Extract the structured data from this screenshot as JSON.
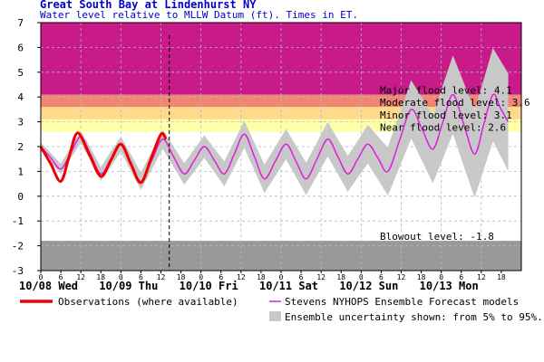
{
  "chart_data": {
    "type": "line",
    "title": "Great South Bay at Lindenhurst NY",
    "subtitle": "Water level relative to MLLW Datum (ft). Times in ET.",
    "xlim": [
      0,
      144
    ],
    "ylim": [
      -3,
      7
    ],
    "yticks": [
      -3,
      -2,
      -1,
      0,
      1,
      2,
      3,
      4,
      5,
      6,
      7
    ],
    "xticks": [
      0,
      6,
      12,
      18,
      {
        "value": 24,
        "label": "0"
      },
      {
        "value": 30,
        "label": "6"
      },
      {
        "value": 36,
        "label": "12"
      },
      {
        "value": 42,
        "label": "18"
      },
      {
        "value": 48,
        "label": "0"
      },
      {
        "value": 54,
        "label": "6"
      },
      {
        "value": 60,
        "label": "12"
      },
      {
        "value": 66,
        "label": "18"
      },
      {
        "value": 72,
        "label": "0"
      },
      {
        "value": 78,
        "label": "6"
      },
      {
        "value": 84,
        "label": "12"
      },
      {
        "value": 90,
        "label": "18"
      },
      {
        "value": 96,
        "label": "0"
      },
      {
        "value": 102,
        "label": "6"
      },
      {
        "value": 108,
        "label": "12"
      },
      {
        "value": 114,
        "label": "18"
      },
      {
        "value": 120,
        "label": "0"
      },
      {
        "value": 126,
        "label": "6"
      },
      {
        "value": 132,
        "label": "12"
      },
      {
        "value": 138,
        "label": "18"
      }
    ],
    "day_labels": [
      {
        "value": 0,
        "label": "10/08 Wed"
      },
      {
        "value": 24,
        "label": "10/09 Thu"
      },
      {
        "value": 48,
        "label": "10/10 Fri"
      },
      {
        "value": 72,
        "label": "10/11 Sat"
      },
      {
        "value": 96,
        "label": "10/12 Sun"
      },
      {
        "value": 120,
        "label": "10/13 Mon"
      }
    ],
    "grid": true,
    "forecast_time": 38.5,
    "flood_bands": [
      {
        "label": "Near flood level: 2.6",
        "level": 2.6,
        "color": "#ffffa8"
      },
      {
        "label": "Minor flood level: 3.1",
        "level": 3.1,
        "color": "#ffd98c"
      },
      {
        "label": "Moderate flood level: 3.6",
        "level": 3.6,
        "color": "#f08672"
      },
      {
        "label": "Major flood level: 4.1",
        "level": 4.1,
        "color": "#c81a88"
      }
    ],
    "blowout": {
      "label": "Blowout level: -1.8",
      "level": -1.8,
      "color": "#999999"
    },
    "series": [
      {
        "name": "Ensemble uncertainty shown: from 5% to 95%.",
        "color": "#c8c8c8",
        "x": [
          0,
          3,
          6,
          9,
          12,
          15,
          18,
          21,
          24,
          27,
          30,
          33.25,
          36.5,
          39.75,
          43,
          46,
          49,
          52,
          55,
          58,
          61,
          64,
          67,
          70.25,
          73.5,
          76.5,
          79.5,
          82.75,
          86,
          89,
          92,
          95,
          98,
          101,
          104,
          107.5,
          111,
          114.25,
          117.5,
          120.5,
          123.5,
          126.75,
          130,
          132.75,
          135.5,
          137.75,
          140
        ],
        "lower": [
          1.85,
          1.38,
          0.91,
          1.55,
          2.18,
          1.41,
          0.64,
          1.22,
          1.81,
          1.04,
          0.27,
          1.1,
          1.93,
          1.21,
          0.49,
          1.02,
          1.56,
          0.99,
          0.42,
          1.2,
          1.98,
          1.07,
          0.15,
          0.83,
          1.51,
          0.79,
          0.07,
          0.85,
          1.63,
          0.92,
          0.2,
          0.78,
          1.34,
          0.7,
          0.05,
          1.2,
          2.35,
          1.45,
          0.55,
          1.55,
          2.55,
          1.25,
          -0.02,
          1.12,
          2.25,
          1.65,
          1.05
        ],
        "upper": [
          2.15,
          1.72,
          1.29,
          1.95,
          2.62,
          1.89,
          1.16,
          1.78,
          2.39,
          1.66,
          0.93,
          1.8,
          2.67,
          1.99,
          1.31,
          1.88,
          2.44,
          1.91,
          1.38,
          2.2,
          3.02,
          2.13,
          1.25,
          1.97,
          2.69,
          2.01,
          1.33,
          2.15,
          2.97,
          2.28,
          1.6,
          2.22,
          2.86,
          2.4,
          1.95,
          3.3,
          4.65,
          3.95,
          3.25,
          4.45,
          5.65,
          4.55,
          3.42,
          4.68,
          5.95,
          5.45,
          4.95
        ]
      },
      {
        "name": "Stevens NYHOPS Ensemble Forecast models",
        "color": "#e01ee0",
        "x": [
          0,
          3,
          6,
          9,
          12,
          15,
          18,
          21,
          24,
          27,
          30,
          33.25,
          36.5,
          39.75,
          43,
          46,
          49,
          52,
          55,
          58,
          61,
          64,
          67,
          70.25,
          73.5,
          76.5,
          79.5,
          82.75,
          86,
          89,
          92,
          95,
          98,
          101,
          104,
          107.5,
          111,
          114.25,
          117.5,
          120.5,
          123.5,
          126.75,
          130,
          132.75,
          135.5,
          137.75,
          140
        ],
        "values": [
          2.0,
          1.55,
          1.1,
          1.75,
          2.4,
          1.65,
          0.9,
          1.5,
          2.1,
          1.35,
          0.6,
          1.45,
          2.3,
          1.6,
          0.9,
          1.45,
          2.0,
          1.45,
          0.9,
          1.7,
          2.5,
          1.6,
          0.7,
          1.4,
          2.1,
          1.4,
          0.7,
          1.5,
          2.3,
          1.6,
          0.9,
          1.5,
          2.1,
          1.55,
          1.0,
          2.25,
          3.5,
          2.7,
          1.9,
          3.0,
          4.1,
          2.9,
          1.7,
          2.9,
          4.1,
          3.55,
          3.0
        ]
      },
      {
        "name": "Observations (where available)",
        "color": "#ee0000",
        "x": [
          0,
          3,
          6,
          8.5,
          11,
          14.5,
          18,
          21,
          24,
          27,
          30,
          33,
          36,
          37.5
        ],
        "values": [
          2.0,
          1.3,
          0.6,
          1.6,
          2.55,
          1.7,
          0.8,
          1.45,
          2.1,
          1.3,
          0.55,
          1.5,
          2.5,
          2.3
        ]
      }
    ]
  }
}
